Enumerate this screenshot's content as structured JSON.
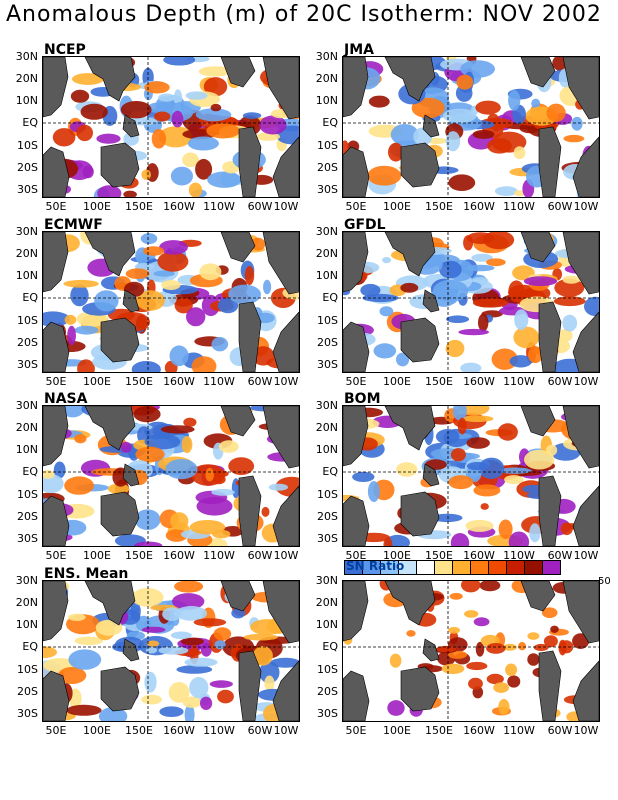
{
  "title": "Anomalous Depth (m) of 20C Isotherm: NOV 2002",
  "lat_labels": [
    "30N",
    "20N",
    "10N",
    "EQ",
    "10S",
    "20S",
    "30S"
  ],
  "lon_labels": [
    "50E",
    "100E",
    "150E",
    "160W",
    "110W",
    "60W",
    "10W"
  ],
  "panels": [
    {
      "name": "NCEP"
    },
    {
      "name": "JMA"
    },
    {
      "name": "ECMWF"
    },
    {
      "name": "GFDL"
    },
    {
      "name": "NASA"
    },
    {
      "name": "BOM"
    },
    {
      "name": "ENS. Mean"
    },
    {
      "name": "SN Ratio",
      "type": "ratio"
    }
  ],
  "legend": {
    "label": "SN  Ratio",
    "max_label": "50",
    "colors": [
      "#3b6fd6",
      "#5c96ea",
      "#8cc2f5",
      "#c6e5fb",
      "#ffffff",
      "#ffe38a",
      "#ffb030",
      "#ff7a10",
      "#f04a00",
      "#c81e00",
      "#961000",
      "#a020c0"
    ]
  },
  "colors": {
    "land": "#5a5a5a",
    "cold": [
      "#3b6fd6",
      "#6aa6ee",
      "#a7d3f7"
    ],
    "warm": [
      "#ffe38a",
      "#ffb030",
      "#ff7a10",
      "#d83000",
      "#9a1200",
      "#a020c0"
    ]
  }
}
